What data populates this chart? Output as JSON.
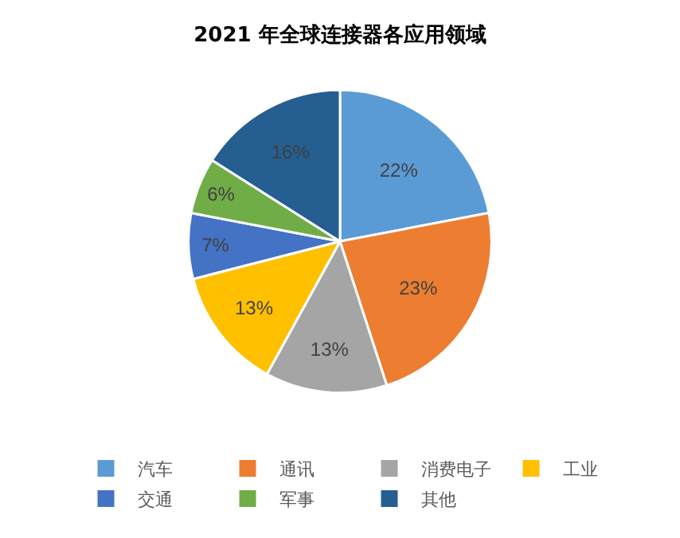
{
  "chart_data": {
    "type": "pie",
    "title": "2021 年全球连接器各应用领域",
    "categories": [
      "汽车",
      "通讯",
      "消费电子",
      "工业",
      "交通",
      "军事",
      "其他"
    ],
    "values": [
      22,
      23,
      13,
      13,
      7,
      6,
      16
    ],
    "value_labels": [
      "22%",
      "23%",
      "13%",
      "13%",
      "7%",
      "6%",
      "16%"
    ],
    "colors": [
      "#5b9bd5",
      "#ed7d31",
      "#a5a5a5",
      "#ffc000",
      "#4472c4",
      "#70ad47",
      "#255e91"
    ],
    "legend": "bottom"
  }
}
